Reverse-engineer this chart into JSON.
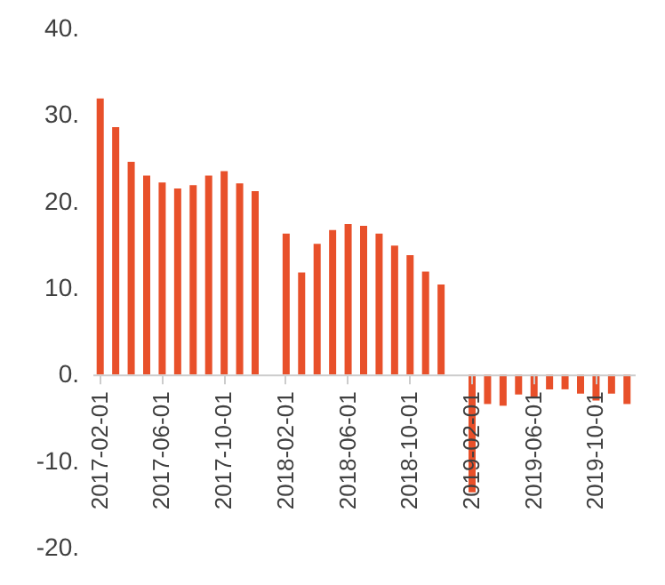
{
  "chart_data": {
    "type": "bar",
    "categories": [
      "2017-02-01",
      null,
      null,
      null,
      "2017-06-01",
      null,
      null,
      null,
      "2017-10-01",
      null,
      null,
      null,
      "2018-02-01",
      null,
      null,
      null,
      "2018-06-01",
      null,
      null,
      null,
      "2018-10-01",
      null,
      null,
      null,
      "2019-02-01",
      null,
      null,
      null,
      "2019-06-01",
      null,
      null,
      null,
      "2019-10-01",
      null,
      null
    ],
    "series": [
      {
        "color": "#e8502a",
        "values": [
          31.9,
          28.6,
          24.6,
          23.0,
          22.2,
          21.5,
          21.9,
          23.0,
          23.5,
          22.1,
          21.2,
          null,
          16.3,
          11.8,
          15.1,
          16.7,
          17.4,
          17.2,
          16.3,
          14.9,
          13.8,
          11.9,
          10.4,
          null,
          -13.6,
          -3.4,
          -3.6,
          -2.3,
          -2.6,
          -1.7,
          -1.7,
          -2.2,
          -3.0,
          -2.2,
          -3.4
        ]
      }
    ],
    "ylim": [
      -20,
      40
    ],
    "yticks": [
      {
        "value": -20,
        "label": "-20."
      },
      {
        "value": -10,
        "label": "-10."
      },
      {
        "value": 0,
        "label": "0."
      },
      {
        "value": 10,
        "label": "10."
      },
      {
        "value": 20,
        "label": "20."
      },
      {
        "value": 30,
        "label": "30."
      },
      {
        "value": 40,
        "label": "40."
      }
    ],
    "grid": false
  }
}
